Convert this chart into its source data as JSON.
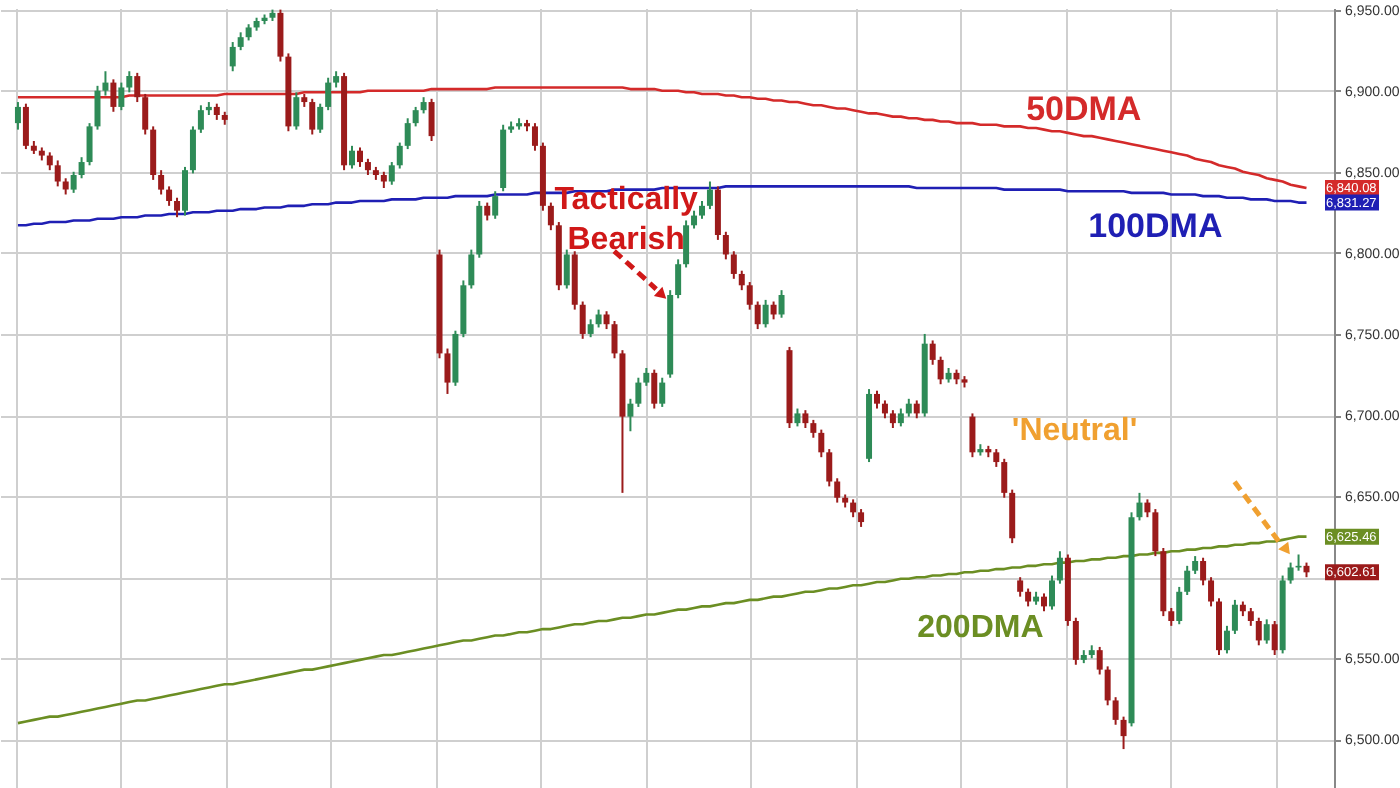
{
  "chart_data": {
    "type": "candlestick",
    "categories": [
      null,
      null,
      null,
      null,
      null,
      null,
      null,
      null,
      null,
      null,
      null,
      null,
      null,
      null,
      null,
      null,
      null,
      null,
      null,
      null,
      null,
      null,
      null,
      null,
      null,
      null,
      null,
      null,
      null,
      null,
      null,
      null,
      null,
      null,
      null,
      null,
      null,
      null,
      null,
      null,
      null,
      null,
      null,
      null,
      null,
      null,
      null,
      null,
      null,
      null,
      null,
      null,
      null,
      null,
      null,
      null,
      null,
      null,
      null,
      null,
      null,
      null,
      null,
      null,
      null,
      null,
      null,
      null,
      null,
      null,
      null,
      null,
      null,
      null,
      null,
      null,
      null,
      null,
      null,
      null,
      null,
      null,
      null,
      null,
      null,
      null,
      null,
      null,
      null,
      null,
      null,
      null,
      null,
      null,
      null,
      null,
      null,
      null,
      null,
      null,
      null,
      null,
      null,
      null,
      null,
      null,
      null,
      null,
      null,
      null,
      null,
      null,
      null,
      null,
      null,
      null,
      null,
      null,
      null,
      null,
      null,
      null,
      null,
      null,
      null,
      null,
      null,
      null,
      null,
      null,
      null,
      null,
      null,
      null,
      null,
      null,
      null,
      null,
      null,
      null,
      null,
      null,
      null,
      null,
      null,
      null,
      null,
      null,
      null,
      null,
      null,
      null,
      null,
      null,
      null,
      null,
      null,
      null,
      null,
      null,
      null,
      null,
      null
    ],
    "ohlc": [
      [
        6880,
        6893,
        6876,
        6890
      ],
      [
        6890,
        6892,
        6864,
        6866
      ],
      [
        6866,
        6869,
        6861,
        6863
      ],
      [
        6863,
        6865,
        6857,
        6860
      ],
      [
        6860,
        6862,
        6851,
        6854
      ],
      [
        6854,
        6857,
        6841,
        6844
      ],
      [
        6844,
        6846,
        6836,
        6839
      ],
      [
        6839,
        6850,
        6837,
        6848
      ],
      [
        6848,
        6859,
        6846,
        6856
      ],
      [
        6856,
        6880,
        6854,
        6878
      ],
      [
        6878,
        6903,
        6876,
        6900
      ],
      [
        6900,
        6912,
        6897,
        6905
      ],
      [
        6905,
        6907,
        6887,
        6890
      ],
      [
        6890,
        6905,
        6888,
        6902
      ],
      [
        6902,
        6912,
        6899,
        6909
      ],
      [
        6909,
        6911,
        6893,
        6896
      ],
      [
        6896,
        6898,
        6873,
        6876
      ],
      [
        6876,
        6878,
        6845,
        6848
      ],
      [
        6848,
        6851,
        6836,
        6839
      ],
      [
        6839,
        6841,
        6829,
        6832
      ],
      [
        6832,
        6834,
        6822,
        6826
      ],
      [
        6826,
        6853,
        6823,
        6851
      ],
      [
        6851,
        6878,
        6849,
        6876
      ],
      [
        6876,
        6891,
        6874,
        6888
      ],
      [
        6888,
        6893,
        6885,
        6890
      ],
      [
        6890,
        6892,
        6882,
        6885
      ],
      [
        6885,
        6887,
        6879,
        6882
      ],
      [
        6915,
        6930,
        6912,
        6927
      ],
      [
        6927,
        6936,
        6925,
        6933
      ],
      [
        6933,
        6941,
        6931,
        6939
      ],
      [
        6939,
        6945,
        6937,
        6943
      ],
      [
        6943,
        6947,
        6941,
        6945
      ],
      [
        6945,
        6950,
        6943,
        6948
      ],
      [
        6948,
        6950,
        6918,
        6921
      ],
      [
        6921,
        6923,
        6875,
        6878
      ],
      [
        6878,
        6899,
        6876,
        6896
      ],
      [
        6896,
        6898,
        6890,
        6893
      ],
      [
        6893,
        6895,
        6873,
        6876
      ],
      [
        6876,
        6892,
        6874,
        6890
      ],
      [
        6890,
        6908,
        6888,
        6905
      ],
      [
        6905,
        6912,
        6902,
        6909
      ],
      [
        6909,
        6911,
        6851,
        6854
      ],
      [
        6854,
        6866,
        6852,
        6863
      ],
      [
        6863,
        6865,
        6853,
        6856
      ],
      [
        6856,
        6858,
        6848,
        6851
      ],
      [
        6851,
        6853,
        6845,
        6848
      ],
      [
        6848,
        6850,
        6840,
        6844
      ],
      [
        6844,
        6856,
        6842,
        6854
      ],
      [
        6854,
        6868,
        6852,
        6866
      ],
      [
        6866,
        6883,
        6864,
        6880
      ],
      [
        6880,
        6890,
        6878,
        6888
      ],
      [
        6888,
        6896,
        6886,
        6893
      ],
      [
        6893,
        6895,
        6869,
        6872
      ],
      [
        6799,
        6802,
        6735,
        6738
      ],
      [
        6738,
        6741,
        6713,
        6720
      ],
      [
        6720,
        6752,
        6718,
        6750
      ],
      [
        6750,
        6783,
        6748,
        6780
      ],
      [
        6780,
        6802,
        6778,
        6799
      ],
      [
        6799,
        6832,
        6797,
        6829
      ],
      [
        6829,
        6831,
        6820,
        6823
      ],
      [
        6823,
        6838,
        6821,
        6835
      ],
      [
        6840,
        6879,
        6838,
        6876
      ],
      [
        6876,
        6881,
        6874,
        6878
      ],
      [
        6878,
        6883,
        6876,
        6880
      ],
      [
        6880,
        6882,
        6875,
        6878
      ],
      [
        6878,
        6880,
        6863,
        6866
      ],
      [
        6866,
        6868,
        6826,
        6829
      ],
      [
        6829,
        6831,
        6814,
        6817
      ],
      [
        6817,
        6819,
        6777,
        6780
      ],
      [
        6780,
        6802,
        6778,
        6799
      ],
      [
        6799,
        6801,
        6765,
        6768
      ],
      [
        6768,
        6770,
        6747,
        6750
      ],
      [
        6750,
        6759,
        6748,
        6756
      ],
      [
        6756,
        6765,
        6754,
        6762
      ],
      [
        6762,
        6764,
        6753,
        6756
      ],
      [
        6756,
        6758,
        6735,
        6738
      ],
      [
        6738,
        6740,
        6652,
        6699
      ],
      [
        6699,
        6710,
        6690,
        6707
      ],
      [
        6707,
        6723,
        6705,
        6720
      ],
      [
        6720,
        6729,
        6718,
        6726
      ],
      [
        6726,
        6728,
        6704,
        6707
      ],
      [
        6707,
        6723,
        6705,
        6720
      ],
      [
        6725,
        6777,
        6723,
        6774
      ],
      [
        6774,
        6796,
        6772,
        6793
      ],
      [
        6793,
        6820,
        6791,
        6817
      ],
      [
        6817,
        6826,
        6815,
        6823
      ],
      [
        6823,
        6832,
        6821,
        6829
      ],
      [
        6829,
        6844,
        6827,
        6839
      ],
      [
        6839,
        6841,
        6808,
        6811
      ],
      [
        6811,
        6813,
        6796,
        6799
      ],
      [
        6799,
        6801,
        6784,
        6787
      ],
      [
        6787,
        6789,
        6777,
        6780
      ],
      [
        6780,
        6782,
        6765,
        6768
      ],
      [
        6768,
        6770,
        6753,
        6756
      ],
      [
        6756,
        6771,
        6754,
        6768
      ],
      [
        6768,
        6770,
        6759,
        6762
      ],
      [
        6762,
        6777,
        6760,
        6774
      ],
      [
        6740,
        6742,
        6692,
        6695
      ],
      [
        6695,
        6704,
        6693,
        6701
      ],
      [
        6701,
        6703,
        6692,
        6695
      ],
      [
        6695,
        6697,
        6686,
        6689
      ],
      [
        6689,
        6691,
        6674,
        6677
      ],
      [
        6677,
        6679,
        6656,
        6659
      ],
      [
        6659,
        6661,
        6646,
        6649
      ],
      [
        6649,
        6651,
        6643,
        6646
      ],
      [
        6646,
        6648,
        6637,
        6640
      ],
      [
        6640,
        6642,
        6631,
        6634
      ],
      [
        6673,
        6716,
        6671,
        6713
      ],
      [
        6713,
        6715,
        6704,
        6707
      ],
      [
        6707,
        6709,
        6698,
        6701
      ],
      [
        6701,
        6703,
        6692,
        6695
      ],
      [
        6695,
        6704,
        6693,
        6701
      ],
      [
        6701,
        6710,
        6699,
        6707
      ],
      [
        6707,
        6709,
        6698,
        6701
      ],
      [
        6701,
        6750,
        6699,
        6744
      ],
      [
        6744,
        6746,
        6731,
        6734
      ],
      [
        6734,
        6736,
        6719,
        6722
      ],
      [
        6722,
        6729,
        6720,
        6726
      ],
      [
        6726,
        6728,
        6719,
        6722
      ],
      [
        6722,
        6724,
        6717,
        6720
      ],
      [
        6699,
        6701,
        6674,
        6677
      ],
      [
        6677,
        6682,
        6675,
        6679
      ],
      [
        6679,
        6681,
        6674,
        6677
      ],
      [
        6677,
        6679,
        6668,
        6671
      ],
      [
        6671,
        6673,
        6649,
        6652
      ],
      [
        6652,
        6654,
        6621,
        6624
      ],
      [
        6598,
        6600,
        6588,
        6591
      ],
      [
        6591,
        6593,
        6582,
        6585
      ],
      [
        6585,
        6591,
        6583,
        6588
      ],
      [
        6588,
        6590,
        6579,
        6582
      ],
      [
        6582,
        6601,
        6580,
        6598
      ],
      [
        6598,
        6616,
        6596,
        6612
      ],
      [
        6612,
        6614,
        6570,
        6573
      ],
      [
        6573,
        6575,
        6546,
        6549
      ],
      [
        6549,
        6555,
        6547,
        6552
      ],
      [
        6552,
        6558,
        6550,
        6555
      ],
      [
        6555,
        6557,
        6540,
        6543
      ],
      [
        6543,
        6545,
        6521,
        6524
      ],
      [
        6524,
        6526,
        6509,
        6512
      ],
      [
        6512,
        6514,
        6494,
        6502
      ],
      [
        6510,
        6640,
        6508,
        6637
      ],
      [
        6637,
        6652,
        6635,
        6646
      ],
      [
        6646,
        6648,
        6637,
        6640
      ],
      [
        6640,
        6642,
        6613,
        6616
      ],
      [
        6616,
        6618,
        6576,
        6579
      ],
      [
        6579,
        6581,
        6570,
        6573
      ],
      [
        6573,
        6594,
        6571,
        6591
      ],
      [
        6591,
        6607,
        6589,
        6604
      ],
      [
        6604,
        6613,
        6602,
        6610
      ],
      [
        6610,
        6612,
        6595,
        6598
      ],
      [
        6598,
        6600,
        6582,
        6585
      ],
      [
        6585,
        6587,
        6552,
        6555
      ],
      [
        6555,
        6570,
        6553,
        6567
      ],
      [
        6567,
        6586,
        6565,
        6583
      ],
      [
        6583,
        6585,
        6576,
        6579
      ],
      [
        6579,
        6581,
        6570,
        6573
      ],
      [
        6573,
        6575,
        6558,
        6561
      ],
      [
        6561,
        6574,
        6559,
        6571
      ],
      [
        6571,
        6573,
        6552,
        6555
      ],
      [
        6555,
        6601,
        6553,
        6598
      ],
      [
        6598,
        6609,
        6596,
        6606
      ],
      [
        6606,
        6614,
        6604,
        6607
      ],
      [
        6607,
        6609,
        6600,
        6603
      ]
    ],
    "series": [
      {
        "name": "50DMA",
        "type": "line",
        "color": "#d42a2a",
        "values": [
          6896,
          6896,
          6896,
          6896,
          6896,
          6896,
          6896,
          6896,
          6896,
          6896,
          6896,
          6896,
          6896,
          6896,
          6897,
          6897,
          6897,
          6897,
          6897,
          6897,
          6897,
          6897,
          6897,
          6897,
          6897,
          6897,
          6898,
          6898,
          6898,
          6898,
          6898,
          6898,
          6898,
          6898,
          6898,
          6898,
          6899,
          6899,
          6899,
          6899,
          6899,
          6899,
          6899,
          6899,
          6900,
          6900,
          6900,
          6900,
          6900,
          6900,
          6900,
          6900,
          6901,
          6901,
          6901,
          6901,
          6901,
          6901,
          6901,
          6901,
          6902,
          6902,
          6902,
          6902,
          6902,
          6902,
          6902,
          6902,
          6902,
          6902,
          6902,
          6902,
          6902,
          6902,
          6902,
          6902,
          6902,
          6901,
          6901,
          6901,
          6901,
          6900,
          6900,
          6900,
          6899,
          6899,
          6898,
          6898,
          6898,
          6897,
          6897,
          6896,
          6896,
          6895,
          6895,
          6894,
          6894,
          6893,
          6893,
          6892,
          6891,
          6891,
          6890,
          6889,
          6889,
          6888,
          6887,
          6886,
          6886,
          6885,
          6884,
          6884,
          6883,
          6883,
          6882,
          6882,
          6881,
          6881,
          6880,
          6880,
          6880,
          6879,
          6879,
          6879,
          6878,
          6878,
          6878,
          6877,
          6877,
          6876,
          6875,
          6875,
          6874,
          6873,
          6872,
          6872,
          6871,
          6870,
          6869,
          6868,
          6867,
          6866,
          6865,
          6864,
          6863,
          6862,
          6861,
          6860,
          6858,
          6857,
          6856,
          6854,
          6853,
          6852,
          6850,
          6849,
          6848,
          6846,
          6845,
          6844,
          6842,
          6841,
          6840
        ]
      },
      {
        "name": "100DMA",
        "type": "line",
        "color": "#1f1fb4",
        "values": [
          6817,
          6817,
          6818,
          6818,
          6819,
          6819,
          6819,
          6820,
          6820,
          6820,
          6821,
          6821,
          6821,
          6822,
          6822,
          6822,
          6823,
          6823,
          6823,
          6824,
          6824,
          6824,
          6825,
          6825,
          6825,
          6826,
          6826,
          6826,
          6827,
          6827,
          6827,
          6828,
          6828,
          6828,
          6829,
          6829,
          6829,
          6830,
          6830,
          6830,
          6831,
          6831,
          6831,
          6832,
          6832,
          6832,
          6832,
          6833,
          6833,
          6833,
          6833,
          6834,
          6834,
          6834,
          6834,
          6835,
          6835,
          6835,
          6835,
          6835,
          6836,
          6836,
          6836,
          6836,
          6836,
          6837,
          6837,
          6837,
          6837,
          6837,
          6838,
          6838,
          6838,
          6838,
          6838,
          6839,
          6839,
          6839,
          6839,
          6839,
          6839,
          6840,
          6840,
          6840,
          6840,
          6840,
          6840,
          6840,
          6840,
          6841,
          6841,
          6841,
          6841,
          6841,
          6841,
          6841,
          6841,
          6841,
          6841,
          6841,
          6841,
          6841,
          6841,
          6841,
          6841,
          6841,
          6841,
          6841,
          6841,
          6841,
          6841,
          6841,
          6841,
          6840,
          6840,
          6840,
          6840,
          6840,
          6840,
          6840,
          6840,
          6840,
          6840,
          6840,
          6839,
          6839,
          6839,
          6839,
          6839,
          6839,
          6839,
          6839,
          6838,
          6838,
          6838,
          6838,
          6838,
          6838,
          6838,
          6838,
          6837,
          6837,
          6837,
          6837,
          6837,
          6836,
          6836,
          6836,
          6836,
          6835,
          6835,
          6835,
          6834,
          6834,
          6834,
          6833,
          6833,
          6833,
          6832,
          6832,
          6832,
          6831,
          6831
        ]
      },
      {
        "name": "200DMA",
        "type": "line",
        "color": "#6b8e23",
        "values": [
          6510,
          6511,
          6512,
          6513,
          6514,
          6514,
          6515,
          6516,
          6517,
          6518,
          6519,
          6520,
          6521,
          6522,
          6523,
          6524,
          6524,
          6525,
          6526,
          6527,
          6528,
          6529,
          6530,
          6531,
          6532,
          6533,
          6534,
          6534,
          6535,
          6536,
          6537,
          6538,
          6539,
          6540,
          6541,
          6542,
          6543,
          6543,
          6544,
          6545,
          6546,
          6547,
          6548,
          6549,
          6550,
          6551,
          6552,
          6552,
          6553,
          6554,
          6555,
          6556,
          6557,
          6558,
          6559,
          6560,
          6561,
          6561,
          6562,
          6563,
          6564,
          6564,
          6565,
          6566,
          6566,
          6567,
          6568,
          6568,
          6569,
          6570,
          6571,
          6571,
          6572,
          6573,
          6573,
          6574,
          6575,
          6575,
          6576,
          6577,
          6577,
          6578,
          6579,
          6580,
          6580,
          6581,
          6582,
          6582,
          6583,
          6584,
          6584,
          6585,
          6586,
          6586,
          6587,
          6588,
          6588,
          6589,
          6590,
          6591,
          6591,
          6592,
          6593,
          6593,
          6594,
          6595,
          6595,
          6596,
          6597,
          6597,
          6598,
          6599,
          6599,
          6600,
          6600,
          6601,
          6601,
          6602,
          6602,
          6603,
          6603,
          6604,
          6604,
          6605,
          6605,
          6606,
          6606,
          6607,
          6607,
          6608,
          6608,
          6609,
          6609,
          6610,
          6610,
          6611,
          6611,
          6612,
          6612,
          6613,
          6613,
          6614,
          6614,
          6615,
          6615,
          6616,
          6616,
          6617,
          6617,
          6618,
          6618,
          6619,
          6619,
          6620,
          6620,
          6621,
          6621,
          6622,
          6622,
          6623,
          6624,
          6625,
          6625
        ]
      }
    ],
    "ylim": [
      6470,
      6951
    ],
    "yticks": [
      {
        "value": 6500,
        "label": "6,500.00"
      },
      {
        "value": 6550,
        "label": "6,550.00"
      },
      {
        "value": 6600,
        "label": null
      },
      {
        "value": 6650,
        "label": "6,650.00"
      },
      {
        "value": 6700,
        "label": "6,700.00"
      },
      {
        "value": 6750,
        "label": "6,750.00"
      },
      {
        "value": 6800,
        "label": "6,800.00"
      },
      {
        "value": 6850,
        "label": "6,850.00"
      },
      {
        "value": 6900,
        "label": "6,900.00"
      },
      {
        "value": 6950,
        "label": "6,950.00"
      }
    ],
    "grid": true,
    "tick_labels": "y",
    "annotations": [
      "Tactically\nBearish",
      "'Neutral'",
      "6,840.08",
      "6,831.27",
      "6,625.46",
      "6,602.61"
    ]
  }
}
